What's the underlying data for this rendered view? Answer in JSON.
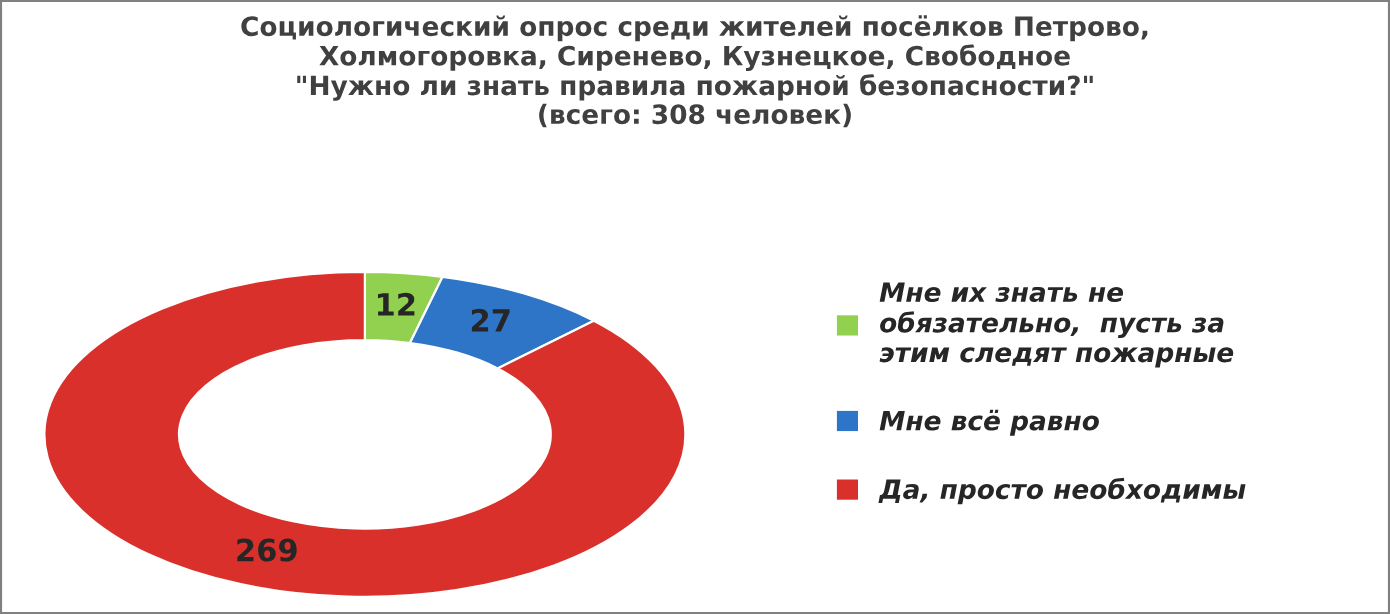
{
  "chart_data": {
    "type": "donut",
    "title": "Социологический опрос среди жителей посёлков Петрово,\nХолмогоровка, Сиренево, Кузнецкое, Свободное\n\"Нужно ли знать правила пожарной безопасности?\"\n(всего: 308 человек)",
    "categories": [
      "Мне их знать не\nобязательно,  пусть за\nэтим следят пожарные",
      "Мне всё равно",
      "Да, просто необходимы"
    ],
    "values": [
      12,
      27,
      269
    ],
    "colors": [
      "#92d050",
      "#2e75c8",
      "#d9302c"
    ],
    "data_labels": true,
    "legend": "right"
  }
}
